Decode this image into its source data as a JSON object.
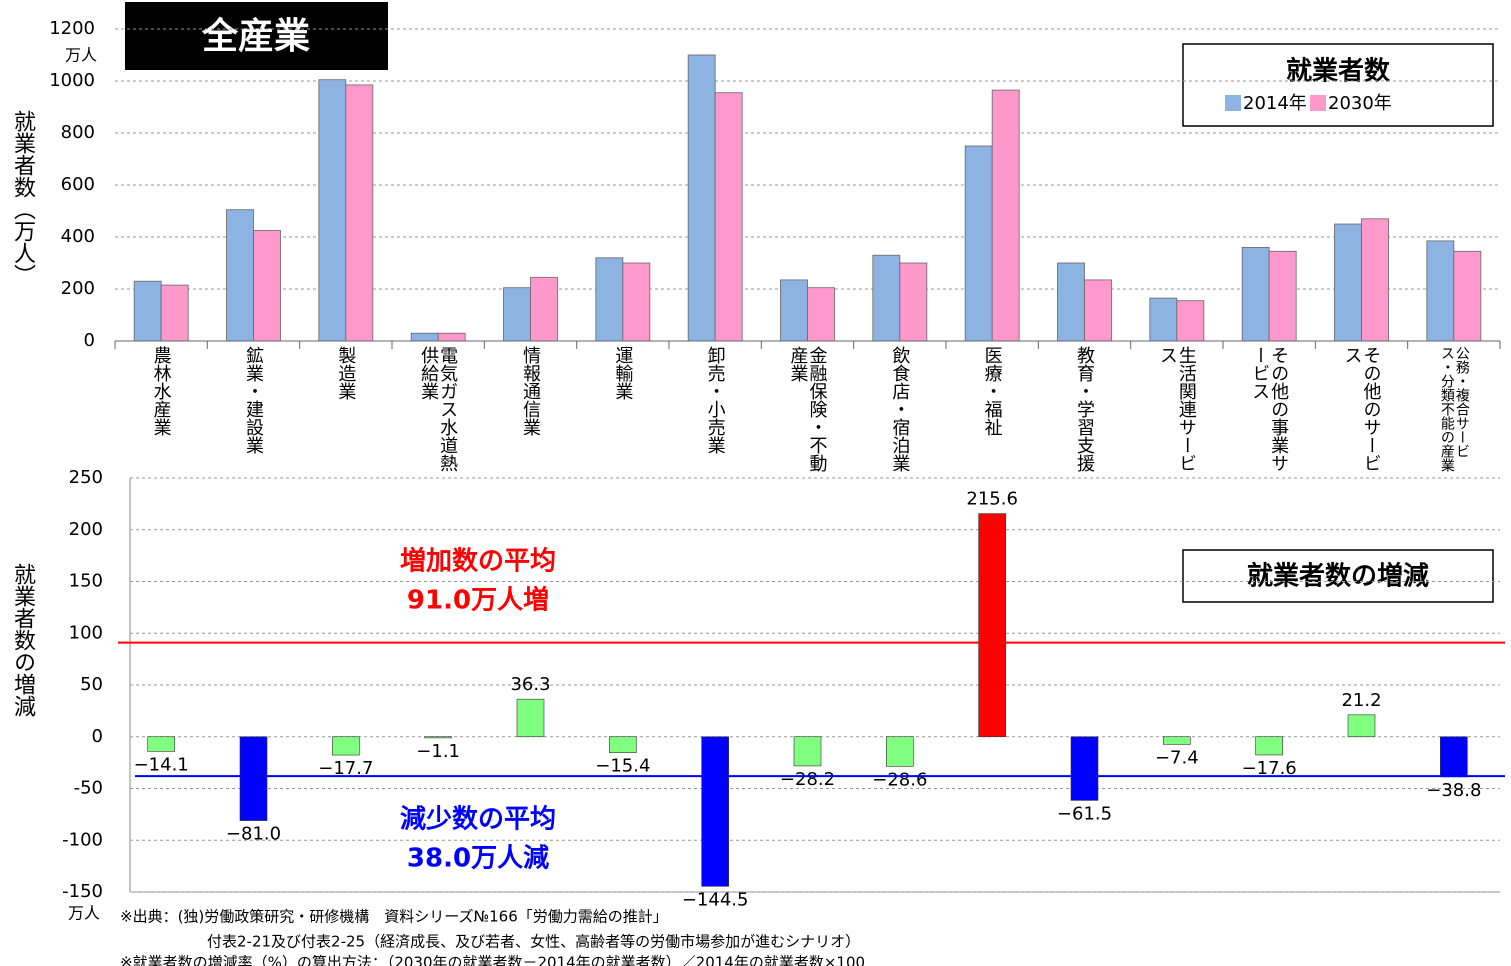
{
  "chart_data": [
    {
      "type": "bar",
      "title": "全産業",
      "legend_title": "就業者数",
      "y_label": "就業者数（万人）",
      "y_unit": "万人",
      "categories": [
        "農林水産業",
        "鉱業・建設業",
        "製造業",
        "電気ガス水道熱供給業",
        "情報通信業",
        "運輸業",
        "卸売・小売業",
        "金融保険・不動産業",
        "飲食店・宿泊業",
        "医療・福祉",
        "教育・学習支援",
        "生活関連サービス",
        "その他の事業サービス",
        "その他のサービス",
        "公務・複合サービス・分類不能の産業"
      ],
      "series": [
        {
          "name": "2014年",
          "color": "#8db3e2",
          "values": [
            230,
            505,
            1005,
            30,
            205,
            320,
            1100,
            235,
            330,
            750,
            300,
            165,
            360,
            450,
            385
          ]
        },
        {
          "name": "2030年",
          "color": "#ff99cc",
          "values": [
            215,
            425,
            985,
            30,
            245,
            300,
            955,
            205,
            300,
            965,
            235,
            155,
            345,
            470,
            345
          ]
        }
      ],
      "ylim": [
        0,
        1200
      ],
      "yticks": [
        0,
        200,
        400,
        600,
        800,
        1000,
        1200
      ],
      "grid": true
    },
    {
      "type": "bar",
      "title": "就業者数の増減",
      "y_label": "就業者数の増減",
      "y_unit": "万人",
      "values": [
        -14.1,
        -81.0,
        -17.7,
        -1.1,
        36.3,
        -15.4,
        -144.5,
        -28.2,
        -28.6,
        215.6,
        -61.5,
        -7.4,
        -17.6,
        21.2,
        -38.8
      ],
      "value_labels": [
        "−14.1",
        "−81.0",
        "−17.7",
        "−1.1",
        "36.3",
        "−15.4",
        "−144.5",
        "−28.2",
        "−28.6",
        "215.6",
        "−61.5",
        "−7.4",
        "−17.6",
        "21.2",
        "−38.8"
      ],
      "colors": [
        "#80ff80",
        "#0000ff",
        "#80ff80",
        "#80ff80",
        "#80ff80",
        "#80ff80",
        "#0000ff",
        "#80ff80",
        "#80ff80",
        "#ff0000",
        "#0000ff",
        "#80ff80",
        "#80ff80",
        "#80ff80",
        "#0000ff"
      ],
      "reference_lines": [
        {
          "value": 91.0,
          "color": "#ff0000",
          "label": [
            "増加数の平均",
            "91.0万人増"
          ]
        },
        {
          "value": -38.0,
          "color": "#0000ff",
          "label": [
            "減少数の平均",
            "38.0万人減"
          ]
        }
      ],
      "ylim": [
        -150,
        250
      ],
      "yticks": [
        -150,
        -100,
        -50,
        0,
        50,
        100,
        150,
        200,
        250
      ],
      "grid": true
    }
  ],
  "notes": [
    "※出典：(独)労働政策研究・研修機構　資料シリーズ№166「労働力需給の推計」",
    "付表2-21及び付表2-25（経済成長、及び若者、女性、高齢者等の労働市場参加が進むシナリオ）",
    "※就業者数の増減率（%）の算出方法：（2030年の就業者数－2014年の就業者数）／2014年の就業者数×100"
  ]
}
